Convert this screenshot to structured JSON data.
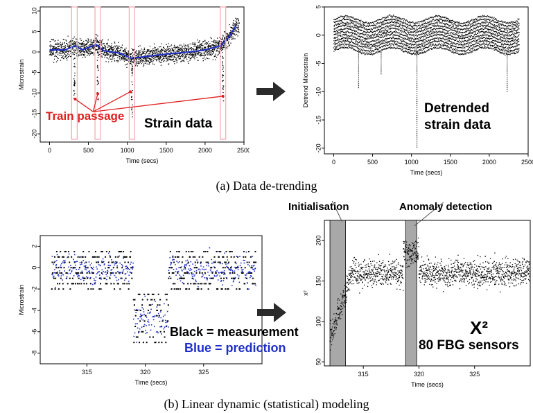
{
  "captions": {
    "a": "(a) Data de-trending",
    "b": "(b) Linear dynamic (statistical) modeling"
  },
  "colors": {
    "measurement": "#000000",
    "prediction": "#1f2fc8",
    "annotation": "#e02020",
    "window_box": "#f4a6b0",
    "shade": "#a8a8a8"
  },
  "chart_data": [
    {
      "id": "strain",
      "type": "scatter",
      "xlabel": "Time (secs)",
      "ylabel": "Microstrain",
      "xlim": [
        -120,
        2500
      ],
      "ylim": [
        -22,
        11
      ],
      "xticks": [
        "0",
        "500",
        "1000",
        "1500",
        "2000",
        "2500"
      ],
      "yticks": [
        "-20",
        "-15",
        "-10",
        "-5",
        "0",
        "5",
        "10"
      ],
      "trend": {
        "x": [
          0,
          200,
          330,
          420,
          600,
          700,
          900,
          1050,
          1200,
          1500,
          1800,
          2000,
          2200,
          2300,
          2400
        ],
        "y": [
          0.5,
          0.5,
          1.5,
          0.5,
          1.8,
          0.3,
          -0.3,
          -1.5,
          -1.2,
          -0.5,
          0,
          0.5,
          1.5,
          3.5,
          6.5
        ]
      },
      "train_windows": [
        320,
        620,
        1060,
        2230
      ],
      "annotations": {
        "train_passage": "Train passage",
        "panel_label": "Strain data"
      }
    },
    {
      "id": "detrended",
      "type": "scatter",
      "xlabel": "Time (secs)",
      "ylabel": "Detrend Microstrain",
      "xlim": [
        -120,
        2500
      ],
      "ylim": [
        -21,
        5
      ],
      "xticks": [
        "0",
        "500",
        "1000",
        "1500",
        "2000",
        "2500"
      ],
      "yticks": [
        "-20",
        "-15",
        "-10",
        "-5",
        "0",
        "5"
      ],
      "spikes": [
        {
          "x": 320,
          "y": -9.5
        },
        {
          "x": 610,
          "y": -7
        },
        {
          "x": 1070,
          "y": -20
        },
        {
          "x": 2230,
          "y": -10
        }
      ],
      "annotations": {
        "label_line1": "Detrended",
        "label_line2": "strain data"
      }
    },
    {
      "id": "prediction",
      "type": "scatter",
      "xlabel": "Time (secs)",
      "ylabel": "Microstrain",
      "xlim": [
        311,
        330
      ],
      "ylim": [
        -9,
        3
      ],
      "xticks": [
        "315",
        "320",
        "325"
      ],
      "yticks": [
        "-8",
        "-6",
        "-4",
        "-2",
        "0",
        "2"
      ],
      "series": [
        {
          "name": "Black = measurement"
        },
        {
          "name": "Blue = prediction"
        }
      ],
      "dip_range": [
        319,
        322
      ]
    },
    {
      "id": "chi2",
      "type": "scatter",
      "xlabel": "Time (secs)",
      "ylabel": "x²",
      "xlim": [
        311.5,
        330
      ],
      "ylim": [
        45,
        225
      ],
      "xticks": [
        "315",
        "320",
        "325"
      ],
      "yticks": [
        "50",
        "100",
        "150",
        "200"
      ],
      "shaded_regions": [
        [
          312,
          313.4
        ],
        [
          318.8,
          319.8
        ]
      ],
      "annotations": {
        "initialisation": "Initialisation",
        "anomaly": "Anomaly detection",
        "stat": "X²",
        "sensors": "80 FBG sensors"
      }
    }
  ]
}
